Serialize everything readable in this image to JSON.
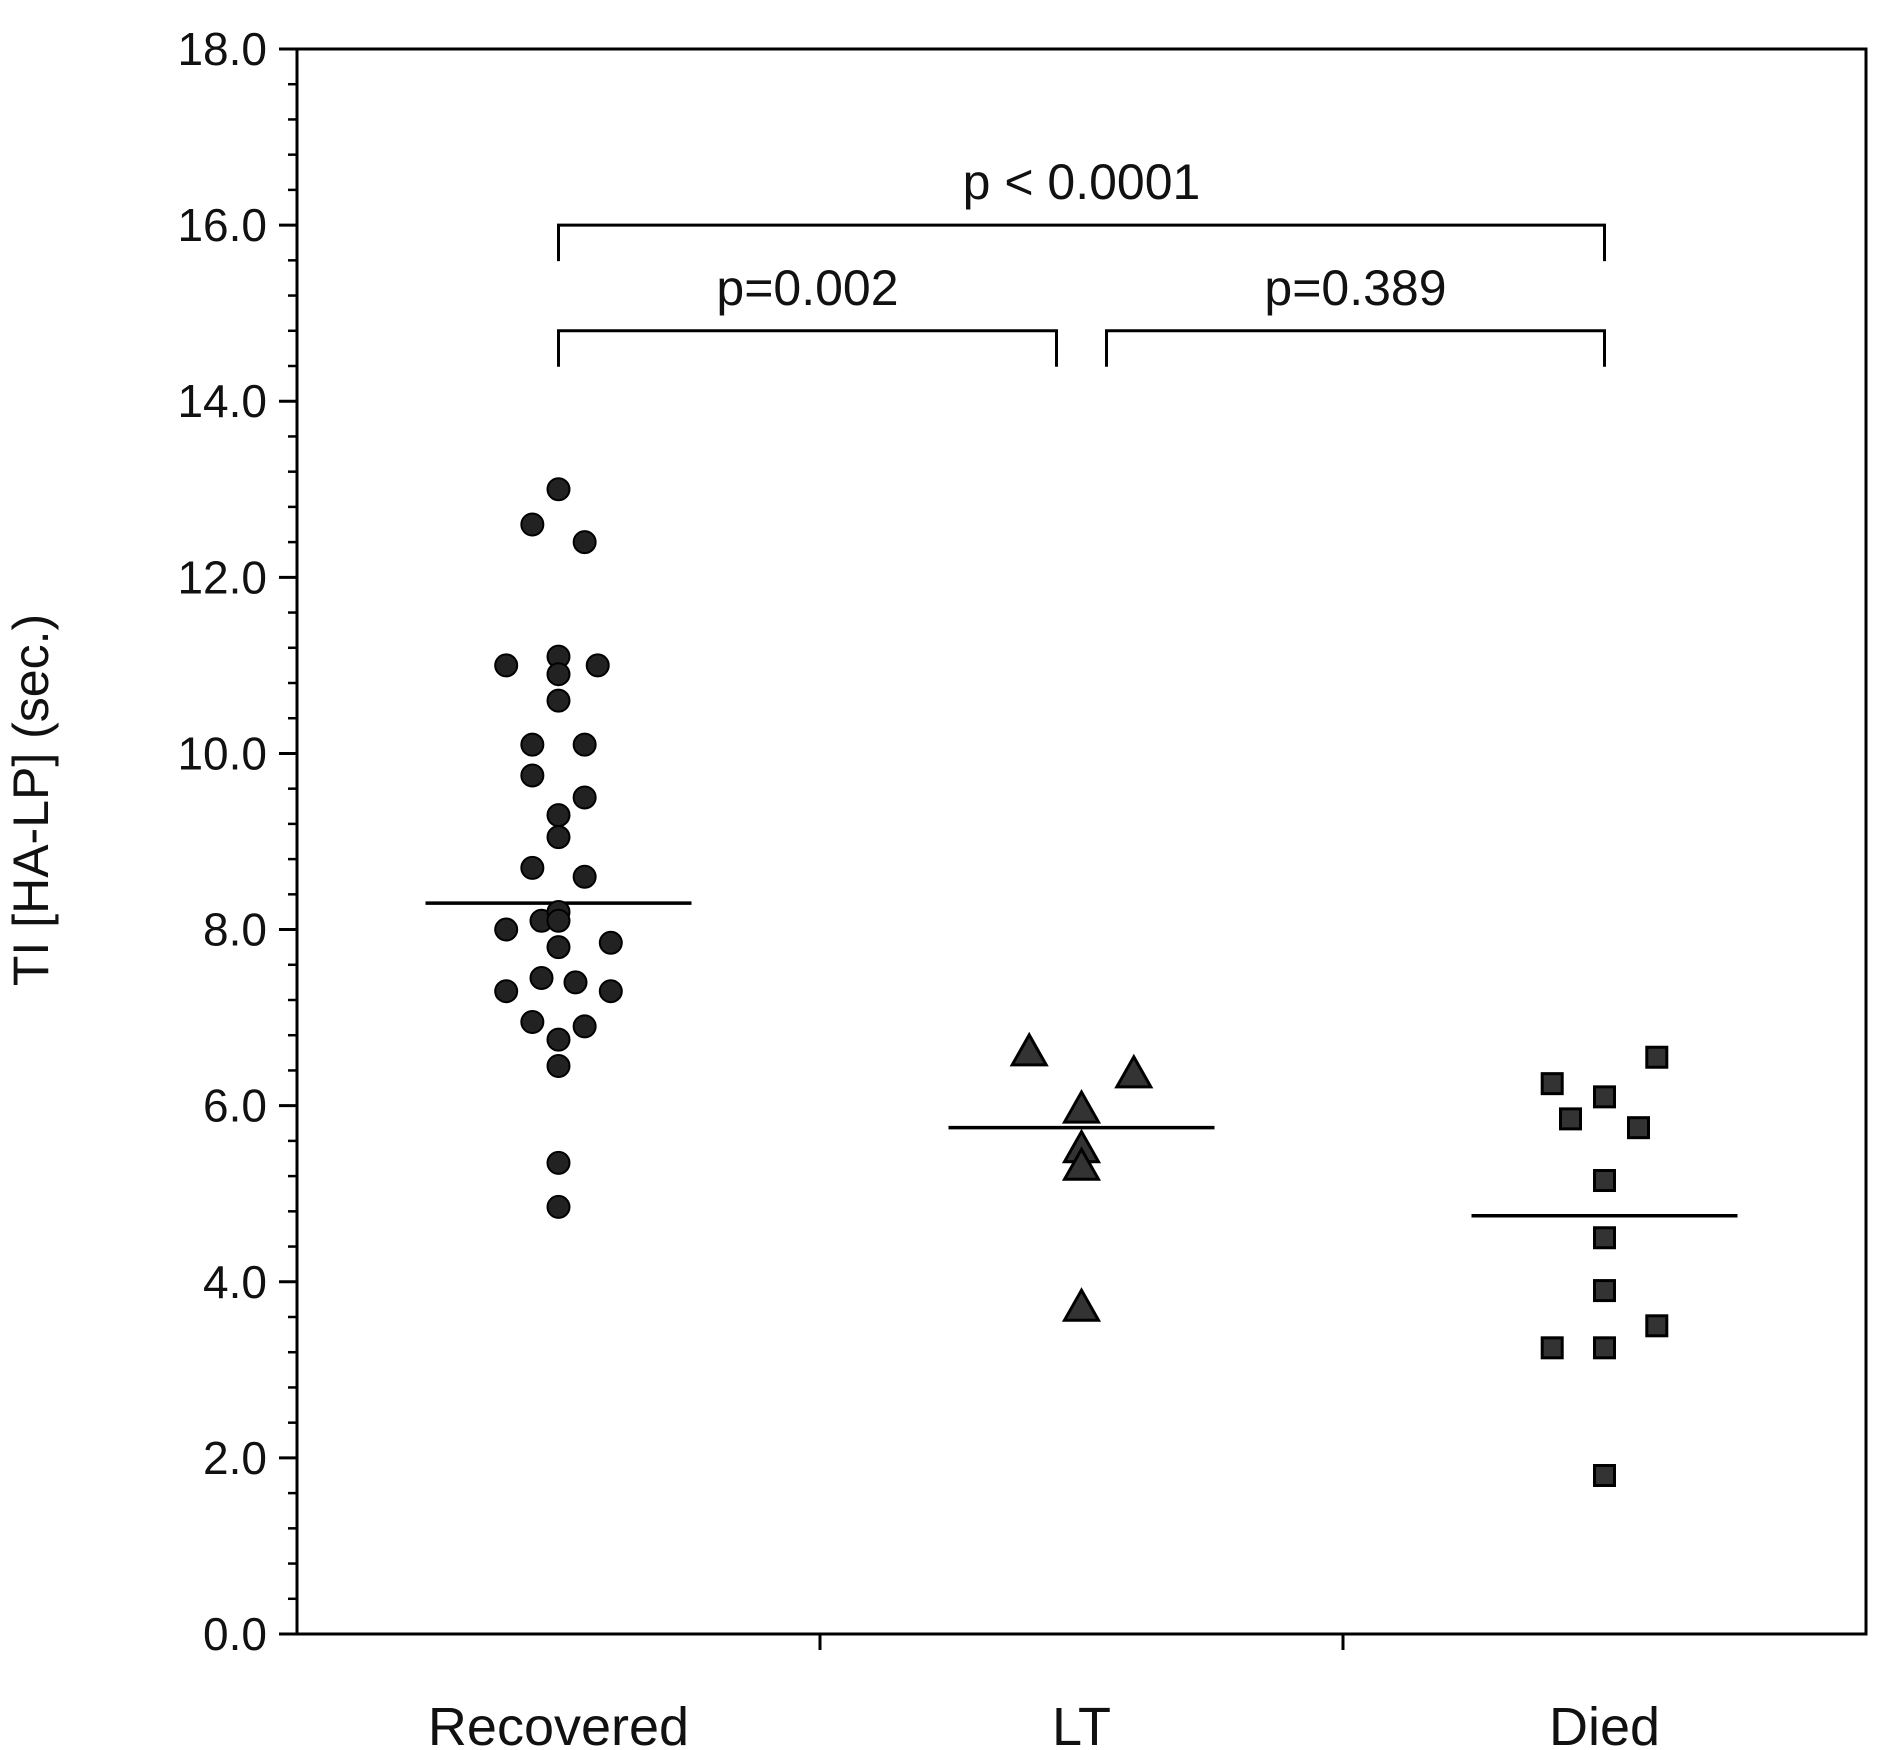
{
  "chart_data": {
    "type": "scatter",
    "title": "",
    "xlabel": "",
    "ylabel": "TI [HA-LP] (sec.)",
    "ylim": [
      0,
      18
    ],
    "yticks": [
      "0.0",
      "2.0",
      "4.0",
      "6.0",
      "8.0",
      "10.0",
      "12.0",
      "14.0",
      "16.0",
      "18.0"
    ],
    "categories": [
      "Recovered",
      "LT",
      "Died"
    ],
    "grid": false,
    "legend": "none",
    "series": [
      {
        "category": "Recovered",
        "marker": "circle",
        "color": "#222222",
        "mean": 8.3,
        "points": [
          {
            "x": 0.0,
            "y": 13.0
          },
          {
            "x": -0.1,
            "y": 12.6
          },
          {
            "x": 0.1,
            "y": 12.4
          },
          {
            "x": -0.2,
            "y": 11.0
          },
          {
            "x": 0.0,
            "y": 11.1
          },
          {
            "x": 0.0,
            "y": 10.9
          },
          {
            "x": 0.15,
            "y": 11.0
          },
          {
            "x": 0.0,
            "y": 10.6
          },
          {
            "x": -0.1,
            "y": 10.1
          },
          {
            "x": 0.1,
            "y": 10.1
          },
          {
            "x": -0.1,
            "y": 9.75
          },
          {
            "x": 0.1,
            "y": 9.5
          },
          {
            "x": 0.0,
            "y": 9.3
          },
          {
            "x": 0.0,
            "y": 9.05
          },
          {
            "x": -0.1,
            "y": 8.7
          },
          {
            "x": 0.1,
            "y": 8.6
          },
          {
            "x": -0.065,
            "y": 8.1
          },
          {
            "x": 0.0,
            "y": 8.2
          },
          {
            "x": 0.0,
            "y": 8.1
          },
          {
            "x": -0.2,
            "y": 8.0
          },
          {
            "x": 0.2,
            "y": 7.85
          },
          {
            "x": 0.0,
            "y": 7.8
          },
          {
            "x": -0.065,
            "y": 7.45
          },
          {
            "x": 0.065,
            "y": 7.4
          },
          {
            "x": -0.2,
            "y": 7.3
          },
          {
            "x": 0.2,
            "y": 7.3
          },
          {
            "x": -0.1,
            "y": 6.95
          },
          {
            "x": 0.1,
            "y": 6.9
          },
          {
            "x": 0.0,
            "y": 6.75
          },
          {
            "x": 0.0,
            "y": 6.45
          },
          {
            "x": 0.0,
            "y": 5.35
          },
          {
            "x": 0.0,
            "y": 4.85
          }
        ]
      },
      {
        "category": "LT",
        "marker": "triangle",
        "color": "#333333",
        "mean": 5.75,
        "points": [
          {
            "x": -0.2,
            "y": 6.6
          },
          {
            "x": 0.2,
            "y": 6.35
          },
          {
            "x": 0.0,
            "y": 5.95
          },
          {
            "x": 0.0,
            "y": 5.5
          },
          {
            "x": 0.0,
            "y": 5.3
          },
          {
            "x": 0.0,
            "y": 3.7
          }
        ]
      },
      {
        "category": "Died",
        "marker": "square",
        "color": "#333333",
        "mean": 4.75,
        "points": [
          {
            "x": 0.2,
            "y": 6.55
          },
          {
            "x": -0.2,
            "y": 6.25
          },
          {
            "x": 0.0,
            "y": 6.1
          },
          {
            "x": -0.13,
            "y": 5.85
          },
          {
            "x": 0.13,
            "y": 5.75
          },
          {
            "x": 0.0,
            "y": 5.15
          },
          {
            "x": 0.0,
            "y": 4.5
          },
          {
            "x": 0.0,
            "y": 3.9
          },
          {
            "x": 0.2,
            "y": 3.5
          },
          {
            "x": -0.2,
            "y": 3.25
          },
          {
            "x": 0.0,
            "y": 3.25
          },
          {
            "x": 0.0,
            "y": 1.8
          }
        ]
      }
    ],
    "annotations": [
      {
        "text": "p < 0.0001",
        "from": "Recovered",
        "to": "Died",
        "y": 16.0
      },
      {
        "text": "p=0.002",
        "from": "Recovered",
        "to": "LT",
        "y": 14.8
      },
      {
        "text": "p=0.389",
        "from": "LT",
        "to": "Died",
        "y": 14.8
      }
    ]
  }
}
